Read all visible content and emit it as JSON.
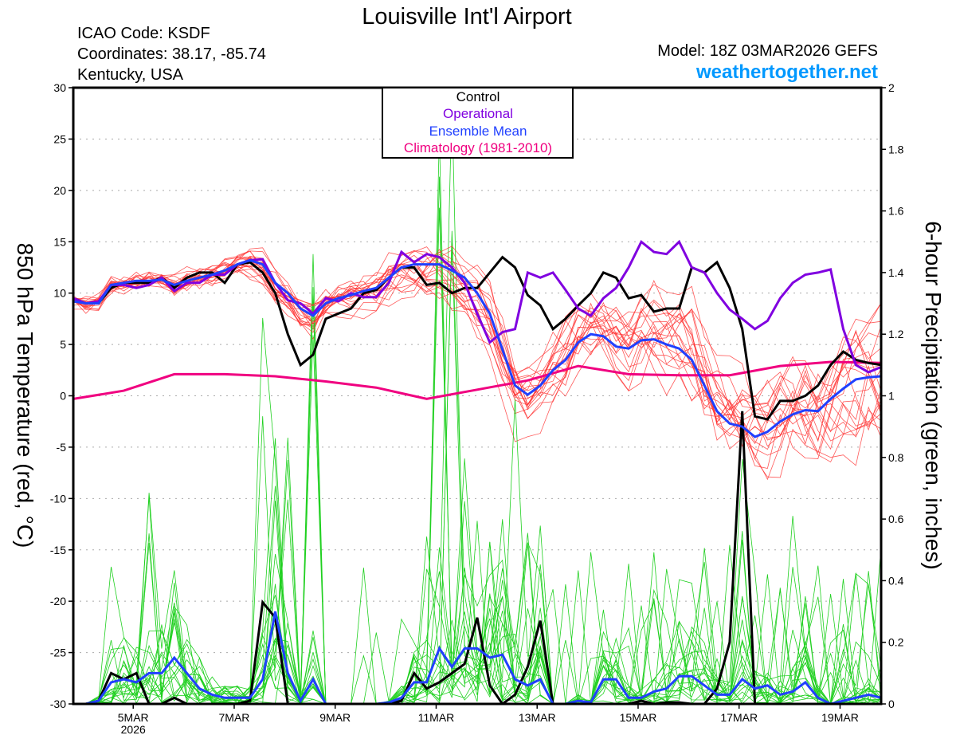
{
  "header": {
    "title": "Louisville Int'l Airport",
    "icao": "ICAO Code: KSDF",
    "coordinates": "Coordinates: 38.17, -85.74",
    "region": "Kentucky, USA",
    "model": "Model: 18Z 03MAR2026 GEFS",
    "site": "weathertogether.net"
  },
  "colors": {
    "control": "#000000",
    "operational": "#8000e0",
    "mean": "#2040ff",
    "climatology": "#f00080",
    "members_temp": "#ff3030",
    "members_precip": "#20d020",
    "site": "#0099ff"
  },
  "chart_data": {
    "type": "line",
    "title": "Louisville Int'l Airport",
    "ylabel": "850 hPa Temperature (red, °C)",
    "y2label": "6-hour Precipitation (green, inches)",
    "ylim": [
      -30,
      30
    ],
    "y2lim": [
      0,
      2
    ],
    "yticks": [
      "30",
      "25",
      "20",
      "15",
      "10",
      "5",
      "0",
      "-5",
      "-10",
      "-15",
      "-20",
      "-25",
      "-30"
    ],
    "y2ticks": [
      "0",
      "0.2",
      "0.4",
      "0.6",
      "0.8",
      "1",
      "1.2",
      "1.4",
      "1.6",
      "1.8",
      "2"
    ],
    "x_unit": "days since 05MAR2026 00Z, 6-hour steps",
    "x_start": -1.25,
    "x_step": 0.25,
    "xlim": [
      -1.25,
      14.75
    ],
    "xticks": [
      {
        "day": 0,
        "label": "5MAR",
        "sub": "2026"
      },
      {
        "day": 2,
        "label": "7MAR"
      },
      {
        "day": 4,
        "label": "9MAR"
      },
      {
        "day": 6,
        "label": "11MAR"
      },
      {
        "day": 8,
        "label": "13MAR"
      },
      {
        "day": 10,
        "label": "15MAR"
      },
      {
        "day": 12,
        "label": "17MAR"
      },
      {
        "day": 14,
        "label": "19MAR"
      }
    ],
    "grid": "dotted horizontal at temperature ticks",
    "legend": {
      "placement": "top-center",
      "items": [
        "Control",
        "Operational",
        "Ensemble Mean",
        "Climatology (1981-2010)"
      ]
    },
    "ensemble_members": 20,
    "temperature": {
      "control": [
        9.5,
        9,
        9,
        10.5,
        11,
        11,
        11,
        11.5,
        10.5,
        11.5,
        12,
        12,
        11,
        12.8,
        13,
        12,
        10,
        6,
        3,
        4,
        7.5,
        8,
        8.5,
        10,
        10.3,
        11.5,
        12.5,
        12.5,
        10.8,
        11,
        10,
        10.5,
        10.5,
        12,
        13.5,
        12.5,
        9.8,
        8.8,
        6.5,
        7.5,
        8.8,
        10,
        12,
        11.5,
        9.5,
        9.8,
        8.2,
        8.5,
        8.5,
        12.5,
        12,
        13,
        10.5,
        6.5,
        -2,
        -2.3,
        -0.5,
        -0.5,
        0,
        1,
        3,
        4.3,
        3.5,
        3.2,
        3
      ],
      "operational": [
        9.5,
        9,
        9.2,
        10.8,
        10.8,
        10.5,
        10.8,
        11.5,
        10.2,
        11,
        11,
        11.8,
        11.8,
        12.8,
        13.2,
        13.3,
        11,
        9.3,
        9,
        8,
        9.5,
        9.2,
        10,
        9.6,
        9.6,
        11,
        14,
        13,
        13.8,
        13.5,
        12.5,
        11,
        8,
        5.2,
        6.2,
        6.5,
        12,
        11.5,
        12,
        10.3,
        8.5,
        7.8,
        9.5,
        10.5,
        12.5,
        15,
        14,
        13.8,
        15,
        12.5,
        12,
        10,
        8.4,
        7.5,
        6.5,
        7.3,
        9.5,
        11,
        11.8,
        12,
        12.3,
        6.5,
        3,
        2.3,
        2.8
      ],
      "mean": [
        9.2,
        9,
        9,
        10.8,
        11,
        11.2,
        11.2,
        11.3,
        10.8,
        11.2,
        11.5,
        11.8,
        12.2,
        12.8,
        13.2,
        12.8,
        11,
        10,
        8.5,
        7.8,
        9,
        9.5,
        9.8,
        10.2,
        10.5,
        11.5,
        12.5,
        12.8,
        12.8,
        12.8,
        12.2,
        11.5,
        10,
        8,
        4.5,
        1,
        0.1,
        1,
        2.5,
        3.5,
        5.2,
        6,
        5.8,
        4.8,
        4.6,
        5.4,
        5.5,
        5,
        4.6,
        3.5,
        1,
        -1.5,
        -2.7,
        -3,
        -4,
        -3.5,
        -2.5,
        -1.8,
        -1.4,
        -1.5,
        -0.3,
        0.7,
        1.6,
        1.8,
        1.9
      ],
      "climatology_step": 1.0,
      "climatology": [
        -0.3,
        0.5,
        2.1,
        2.1,
        1.9,
        1.4,
        0.8,
        -0.3,
        0.6,
        1.5,
        2.9,
        2.1,
        2.0,
        2.0,
        2.9,
        3.3,
        3.2
      ]
    },
    "precipitation": {
      "control": [
        0,
        0,
        0.01,
        0.1,
        0.08,
        0.1,
        0,
        0,
        0.02,
        0,
        0,
        0,
        0,
        0,
        0.01,
        0.33,
        0.28,
        0,
        0,
        0,
        0,
        0,
        0,
        0,
        0,
        0,
        0.01,
        0.1,
        0.05,
        0.07,
        0.1,
        0.13,
        0.28,
        0.06,
        0,
        0.03,
        0.12,
        0.27,
        0,
        0,
        0,
        0,
        0,
        0,
        0,
        0.01,
        0,
        0.005,
        0.005,
        0,
        0,
        0.05,
        0.2,
        0.95,
        0,
        0,
        0,
        0,
        0,
        0,
        0,
        0,
        0,
        0,
        0
      ],
      "mean": [
        0,
        0,
        0.01,
        0.07,
        0.08,
        0.07,
        0.1,
        0.1,
        0.15,
        0.1,
        0.05,
        0.03,
        0.02,
        0.02,
        0.02,
        0.08,
        0.3,
        0.1,
        0.01,
        0.08,
        0,
        0,
        0,
        0,
        0,
        0.005,
        0.02,
        0.07,
        0.07,
        0.18,
        0.12,
        0.18,
        0.18,
        0.15,
        0.16,
        0.08,
        0.06,
        0.08,
        0,
        0,
        0.01,
        0.005,
        0.08,
        0.08,
        0.02,
        0.02,
        0.04,
        0.05,
        0.09,
        0.09,
        0.06,
        0.03,
        0.03,
        0.08,
        0.05,
        0.06,
        0.03,
        0.04,
        0.07,
        0.02,
        0,
        0.01,
        0.02,
        0.03,
        0.02
      ]
    }
  }
}
